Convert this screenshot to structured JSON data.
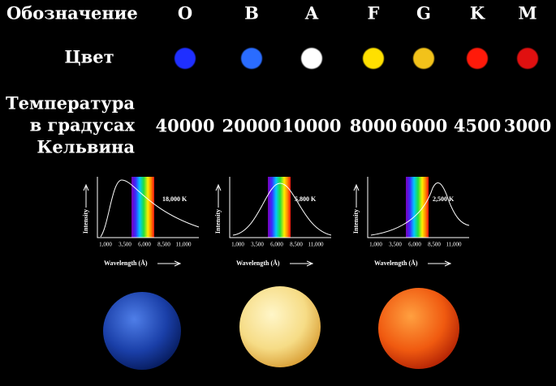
{
  "labels": {
    "designation": "Обозначение",
    "color": "Цвет",
    "temperature": [
      "Температура",
      "в градусах",
      "Кельвина"
    ]
  },
  "classes": [
    {
      "letter": "O",
      "color": "#1f2fff",
      "temperature": 40000
    },
    {
      "letter": "B",
      "color": "#2a6cff",
      "temperature": 20000
    },
    {
      "letter": "A",
      "color": "#ffffff",
      "temperature": 10000
    },
    {
      "letter": "F",
      "color": "#ffe000",
      "temperature": 8000
    },
    {
      "letter": "G",
      "color": "#f2c21a",
      "temperature": 6000
    },
    {
      "letter": "K",
      "color": "#ff1a0a",
      "temperature": 4500
    },
    {
      "letter": "M",
      "color": "#e01010",
      "temperature": 3000
    }
  ],
  "plots": [
    {
      "y_label": "Intensity",
      "x_label": "Wavelength (Å)",
      "x_ticks": [
        "1,000",
        "3,500",
        "6,000",
        "8,500",
        "11,000"
      ],
      "temperature": "18,000 K"
    },
    {
      "y_label": "Intensity",
      "x_label": "Wavelength (Å)",
      "x_ticks": [
        "1,000",
        "3,500",
        "6,000",
        "8,500",
        "11,000"
      ],
      "temperature": "5,800 K"
    },
    {
      "y_label": "Intensity",
      "x_label": "Wavelength (Å)",
      "x_ticks": [
        "1,000",
        "3,500",
        "6,000",
        "8,500",
        "11,000"
      ],
      "temperature": "2,500 K"
    }
  ]
}
